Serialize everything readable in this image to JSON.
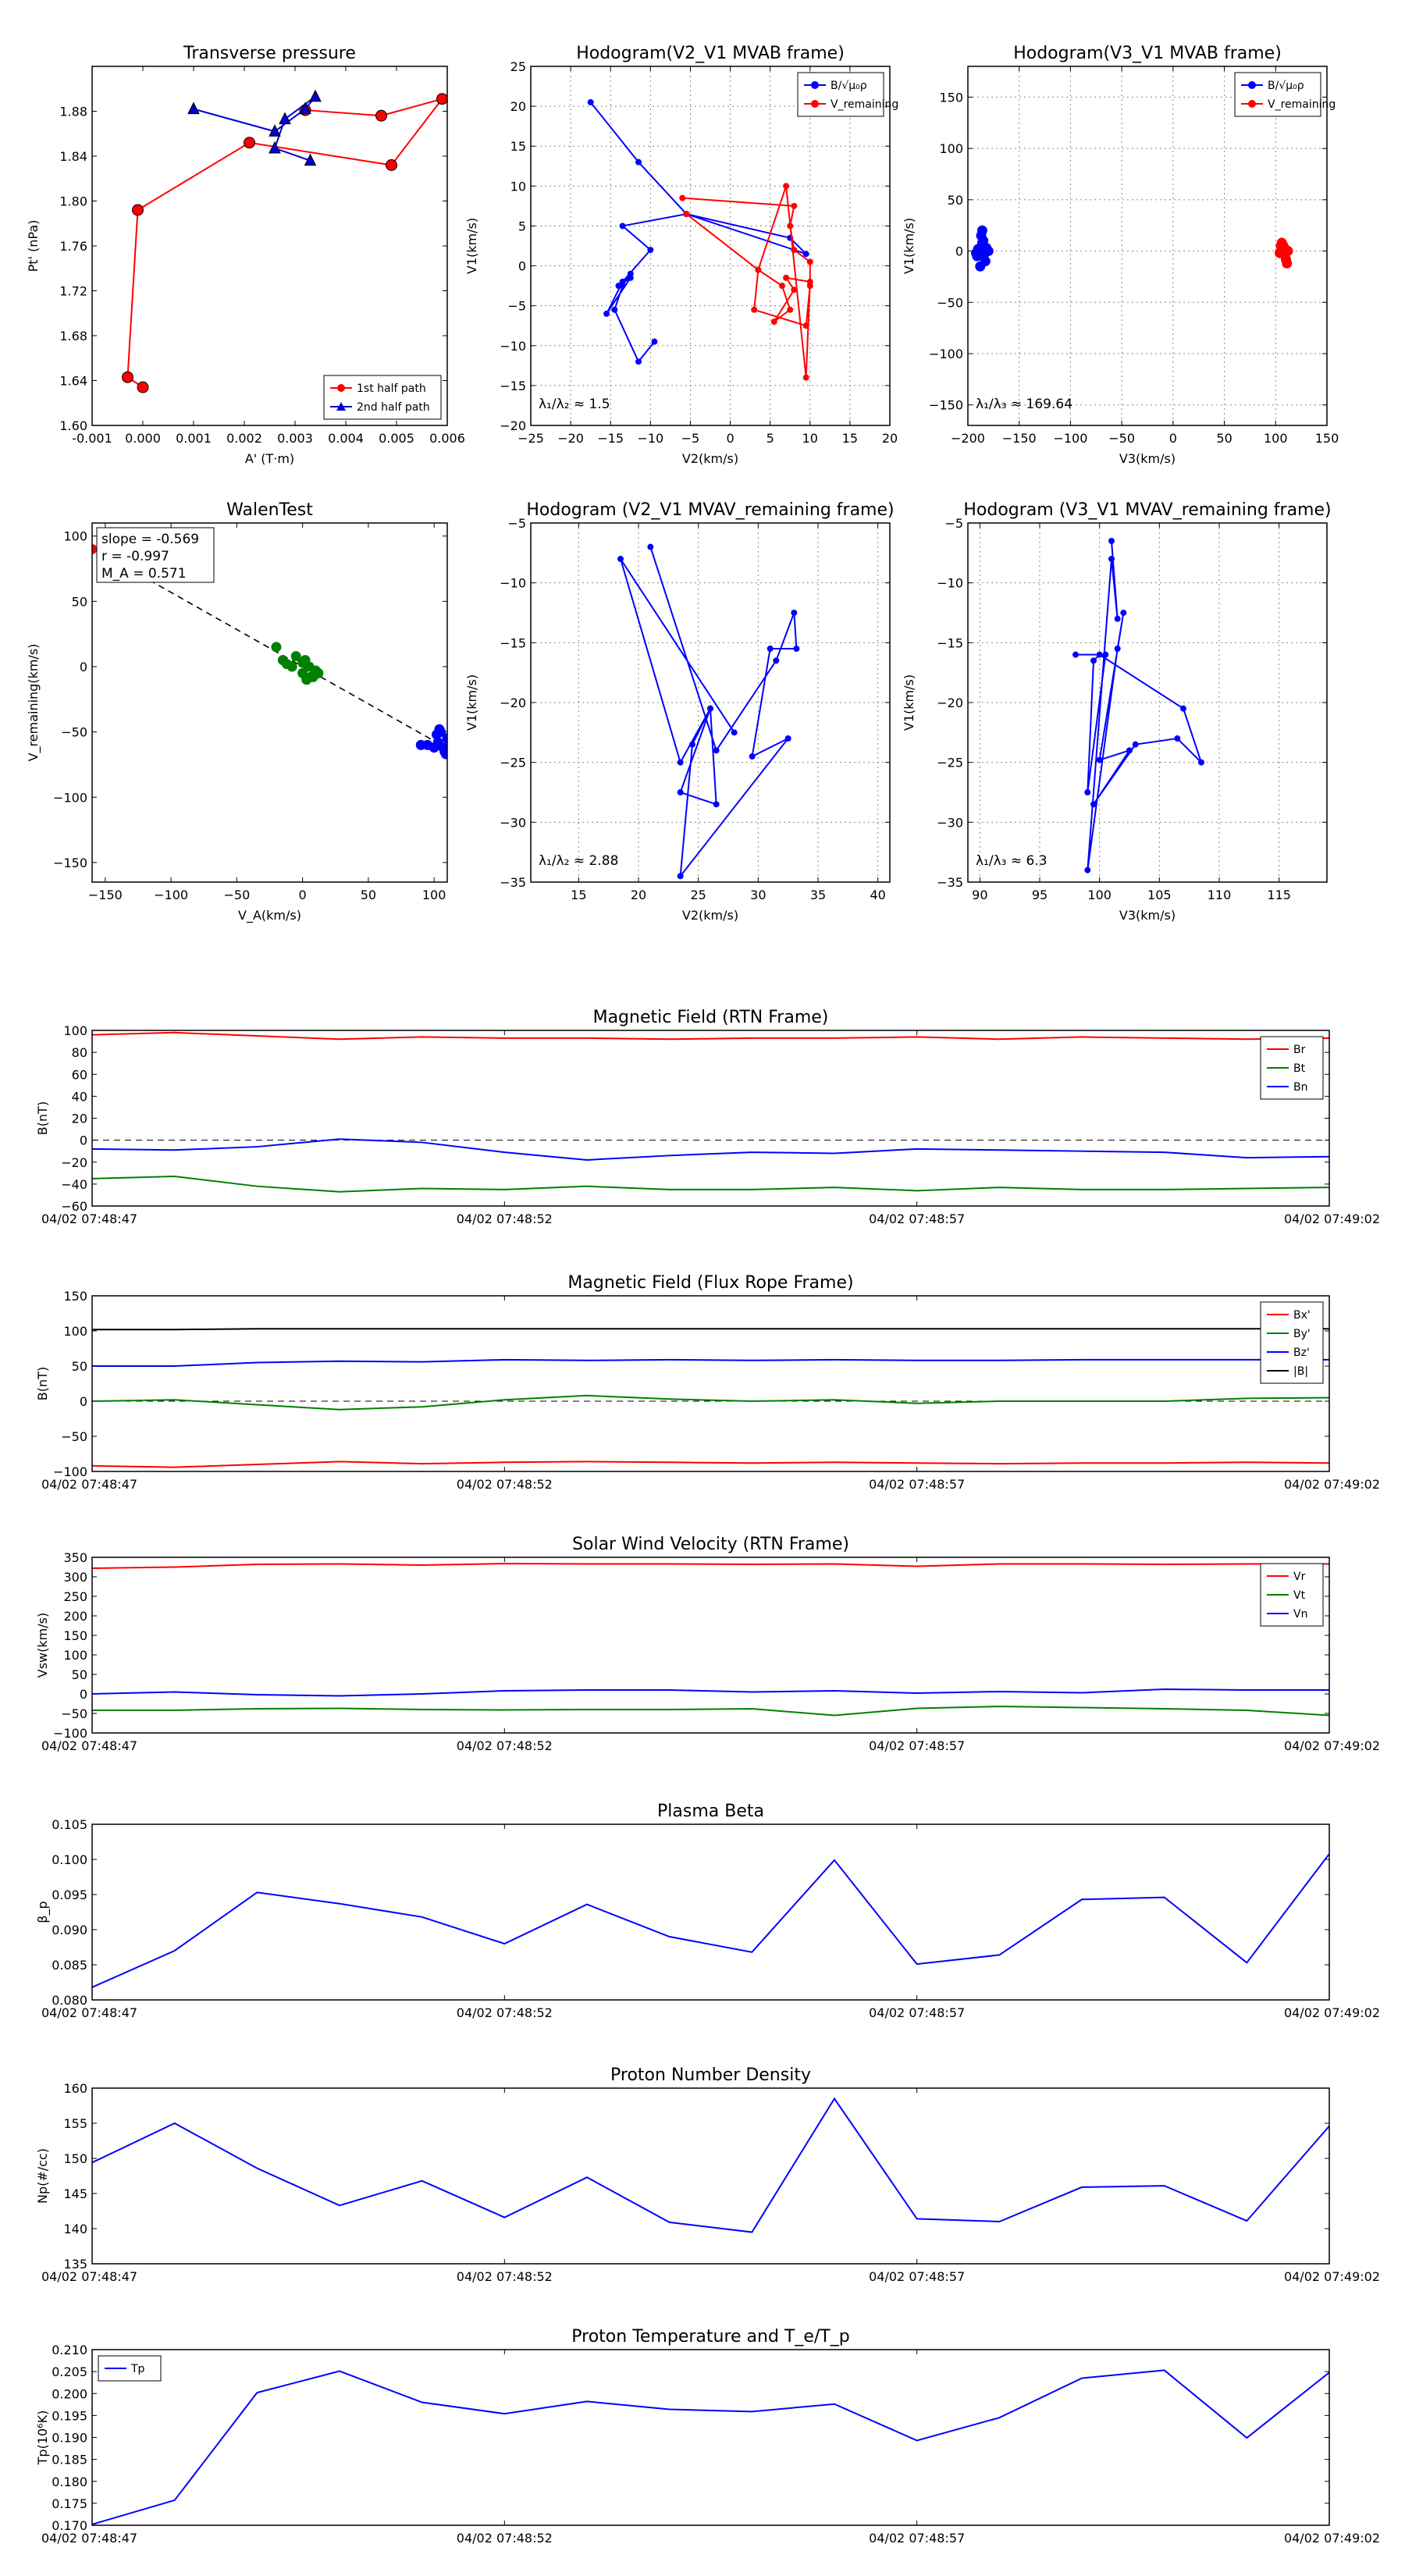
{
  "chart_data": [
    {
      "id": "transverse_pressure",
      "type": "line",
      "title": "Transverse pressure",
      "xlabel": "A' (T·m)",
      "ylabel": "Pt' (nPa)",
      "xlim": [
        -0.001,
        0.006
      ],
      "ylim": [
        1.6,
        1.92
      ],
      "xticks": [
        "-0.001",
        "0.000",
        "0.001",
        "0.002",
        "0.003",
        "0.004",
        "0.005",
        "0.006"
      ],
      "yticks": [
        "1.60",
        "1.64",
        "1.68",
        "1.72",
        "1.76",
        "1.80",
        "1.84",
        "1.88"
      ],
      "legend": "bottom-right",
      "series": [
        {
          "name": "1st half path",
          "color": "#ff0000",
          "marker": "circle",
          "x": [
            0.0,
            -0.0003,
            -0.0001,
            0.0021,
            0.0049,
            0.0059,
            0.0047,
            0.0032
          ],
          "y": [
            1.634,
            1.643,
            1.792,
            1.852,
            1.832,
            1.891,
            1.876,
            1.881
          ]
        },
        {
          "name": "2nd half path",
          "color": "#0000cc",
          "marker": "triangle",
          "x": [
            0.0033,
            0.0026,
            0.0028,
            0.0034,
            0.0032,
            0.0026,
            0.001
          ],
          "y": [
            1.836,
            1.847,
            1.873,
            1.893,
            1.882,
            1.862,
            1.882
          ]
        }
      ]
    },
    {
      "id": "hodo_v2v1_mvab",
      "type": "line",
      "title": "Hodogram(V2_V1 MVAB frame)",
      "xlabel": "V2(km/s)",
      "ylabel": "V1(km/s)",
      "xlim": [
        -25,
        20
      ],
      "ylim": [
        -20,
        25
      ],
      "xticks": [
        "−25",
        "−20",
        "−15",
        "−10",
        "−5",
        "0",
        "5",
        "10",
        "15",
        "20"
      ],
      "yticks": [
        "−20",
        "−15",
        "−10",
        "−5",
        "0",
        "5",
        "10",
        "15",
        "20",
        "25"
      ],
      "annotation": "λ₁/λ₂ ≈ 1.5",
      "legend": "top-right",
      "series": [
        {
          "name": "B/√μ₀ρ",
          "color": "#0000ff",
          "x": [
            -17.5,
            -11.5,
            -5.5,
            9.5,
            7.5,
            -5.5,
            -13.5,
            -10,
            -13.5,
            -15.5,
            -12.5,
            -14,
            -12.5,
            -13.5,
            -14.5,
            -11.5,
            -9.5
          ],
          "y": [
            20.5,
            13,
            6.5,
            1.5,
            3.5,
            6.5,
            5,
            2,
            -2,
            -6,
            -1.5,
            -2.5,
            -1,
            -2.5,
            -5.5,
            -12,
            -9.5
          ]
        },
        {
          "name": "V_remaining",
          "color": "#ff0000",
          "x": [
            -6,
            8,
            7.5,
            8,
            10,
            10,
            9.5,
            3,
            3.5,
            6.5,
            7.5,
            5.5,
            8,
            7,
            10,
            9.5,
            7,
            3.5,
            -5.5
          ],
          "y": [
            8.5,
            7.5,
            5,
            2,
            0.5,
            -2.5,
            -7.5,
            -5.5,
            -0.5,
            -2.5,
            -5.5,
            -7,
            -3,
            -1.5,
            -2,
            -14,
            10,
            -0.5,
            6.5
          ]
        }
      ]
    },
    {
      "id": "hodo_v3v1_mvab",
      "type": "scatter",
      "title": "Hodogram(V3_V1 MVAB frame)",
      "xlabel": "V3(km/s)",
      "ylabel": "V1(km/s)",
      "xlim": [
        -200,
        150
      ],
      "ylim": [
        -170,
        180
      ],
      "xticks": [
        "−200",
        "−150",
        "−100",
        "−50",
        "0",
        "50",
        "100",
        "150"
      ],
      "yticks": [
        "−150",
        "−100",
        "−50",
        "0",
        "50",
        "100",
        "150"
      ],
      "annotation": "λ₁/λ₃ ≈ 169.64",
      "legend": "top-right",
      "series": [
        {
          "name": "B/√μ₀ρ",
          "color": "#0000ff",
          "x": [
            -190,
            -186,
            -191,
            -187,
            -184,
            -189,
            -185,
            -183,
            -192,
            -186,
            -180,
            -188,
            -185,
            -182
          ],
          "y": [
            2,
            8,
            -5,
            15,
            -3,
            0,
            5,
            -10,
            -2,
            20,
            0,
            -15,
            10,
            3
          ]
        },
        {
          "name": "V_remaining",
          "color": "#ff0000",
          "x": [
            105,
            108,
            110,
            106,
            112,
            109,
            107,
            104,
            111,
            108
          ],
          "y": [
            5,
            2,
            -8,
            8,
            0,
            -3,
            6,
            -2,
            -12,
            4
          ]
        }
      ]
    },
    {
      "id": "walen_test",
      "type": "scatter",
      "title": "WalenTest",
      "xlabel": "V_A(km/s)",
      "ylabel": "V_remaining(km/s)",
      "xlim": [
        -160,
        110
      ],
      "ylim": [
        -165,
        110
      ],
      "xticks": [
        "−150",
        "−100",
        "−50",
        "0",
        "50",
        "100"
      ],
      "yticks": [
        "−150",
        "−100",
        "−50",
        "0",
        "50",
        "100"
      ],
      "stats": [
        "slope = -0.569",
        "r = -0.997",
        "M_A = 0.571"
      ],
      "series": [
        {
          "name": "red",
          "color": "#ff0000",
          "x": [
            -160
          ],
          "y": [
            90
          ]
        },
        {
          "name": "green",
          "color": "#008000",
          "x": [
            -20,
            -12,
            -5,
            0,
            2,
            5,
            8,
            10,
            -15,
            3,
            12,
            6,
            -8,
            0
          ],
          "y": [
            15,
            2,
            8,
            -5,
            5,
            0,
            -8,
            -3,
            5,
            -10,
            -5,
            -8,
            0,
            3
          ]
        },
        {
          "name": "blue",
          "color": "#0000ff",
          "x": [
            90,
            100,
            103,
            105,
            108,
            110,
            102,
            95,
            107,
            104,
            109
          ],
          "y": [
            -60,
            -62,
            -58,
            -50,
            -65,
            -55,
            -52,
            -60,
            -62,
            -48,
            -67
          ]
        }
      ],
      "fit_line": {
        "x": [
          -160,
          110
        ],
        "y": [
          91.0,
          -62.6
        ]
      }
    },
    {
      "id": "hodo_v2v1_mvav",
      "type": "line",
      "title": "Hodogram (V2_V1 MVAV_remaining frame)",
      "xlabel": "V2(km/s)",
      "ylabel": "V1(km/s)",
      "xlim": [
        11,
        41
      ],
      "ylim": [
        -35,
        -5
      ],
      "xticks": [
        "15",
        "20",
        "25",
        "30",
        "35",
        "40"
      ],
      "yticks": [
        "−35",
        "−30",
        "−25",
        "−20",
        "−15",
        "−10",
        "−5"
      ],
      "annotation": "λ₁/λ₂ ≈ 2.88",
      "series": [
        {
          "name": "hodogram",
          "color": "#0000ff",
          "x": [
            21,
            26.5,
            31.5,
            33,
            33.2,
            31,
            29.5,
            32.5,
            23.5,
            24.5,
            26,
            23.5,
            26.5,
            26,
            23.5,
            18.5,
            28
          ],
          "y": [
            -7,
            -24,
            -16.5,
            -12.5,
            -15.5,
            -15.5,
            -24.5,
            -23,
            -34.5,
            -23.5,
            -20.5,
            -27.5,
            -28.5,
            -20.5,
            -25,
            -8,
            -22.5
          ]
        }
      ]
    },
    {
      "id": "hodo_v3v1_mvav",
      "type": "line",
      "title": "Hodogram (V3_V1 MVAV_remaining frame)",
      "xlabel": "V3(km/s)",
      "ylabel": "V1(km/s)",
      "xlim": [
        89,
        119
      ],
      "ylim": [
        -35,
        -5
      ],
      "xticks": [
        "90",
        "95",
        "100",
        "105",
        "110",
        "115"
      ],
      "yticks": [
        "−35",
        "−30",
        "−25",
        "−20",
        "−15",
        "−10",
        "−5"
      ],
      "annotation": "λ₁/λ₃ ≈ 6.3",
      "series": [
        {
          "name": "hodogram",
          "color": "#0000ff",
          "x": [
            101,
            101.5,
            101,
            99,
            101.5,
            102,
            100,
            102.5,
            99.5,
            103,
            106.5,
            108.5,
            107,
            100,
            99.5,
            99,
            100.5,
            98
          ],
          "y": [
            -6.5,
            -13,
            -8,
            -34,
            -15.5,
            -12.5,
            -24.8,
            -24,
            -28.5,
            -23.5,
            -23,
            -25,
            -20.5,
            -16,
            -16.5,
            -27.5,
            -16,
            -16
          ]
        }
      ]
    },
    {
      "id": "mag_rtn",
      "type": "line",
      "title": "Magnetic Field (RTN Frame)",
      "ylabel": "B(nT)",
      "ylim": [
        -60,
        100
      ],
      "yticks": [
        "−60",
        "−40",
        "−20",
        "0",
        "20",
        "40",
        "60",
        "80",
        "100"
      ],
      "xticks": [
        "04/02 07:48:47",
        "04/02 07:48:52",
        "04/02 07:48:57",
        "04/02 07:49:02"
      ],
      "zero_line": true,
      "legend": "top-right",
      "series": [
        {
          "name": "Br",
          "color": "#ff0000",
          "values": [
            96,
            98,
            95,
            92,
            94,
            93,
            93,
            92,
            93,
            93,
            94,
            92,
            94,
            93,
            92,
            93
          ]
        },
        {
          "name": "Bt",
          "color": "#008000",
          "values": [
            -35,
            -33,
            -42,
            -47,
            -44,
            -45,
            -42,
            -45,
            -45,
            -43,
            -46,
            -43,
            -45,
            -45,
            -44,
            -43
          ]
        },
        {
          "name": "Bn",
          "color": "#0000ff",
          "values": [
            -8,
            -9,
            -6,
            1,
            -2,
            -11,
            -18,
            -14,
            -11,
            -12,
            -8,
            -9,
            -10,
            -11,
            -16,
            -15
          ]
        }
      ]
    },
    {
      "id": "mag_flux_rope",
      "type": "line",
      "title": "Magnetic Field (Flux Rope Frame)",
      "ylabel": "B(nT)",
      "ylim": [
        -100,
        150
      ],
      "yticks": [
        "−100",
        "−50",
        "0",
        "50",
        "100",
        "150"
      ],
      "xticks": [
        "04/02 07:48:47",
        "04/02 07:48:52",
        "04/02 07:48:57",
        "04/02 07:49:02"
      ],
      "zero_line": true,
      "legend": "top-right",
      "series": [
        {
          "name": "Bx'",
          "color": "#ff0000",
          "values": [
            -92,
            -94,
            -90,
            -86,
            -89,
            -87,
            -86,
            -87,
            -88,
            -87,
            -88,
            -89,
            -88,
            -88,
            -87,
            -88
          ]
        },
        {
          "name": "By'",
          "color": "#008000",
          "values": [
            0,
            2,
            -5,
            -12,
            -8,
            2,
            8,
            3,
            0,
            2,
            -3,
            0,
            0,
            0,
            4,
            5
          ]
        },
        {
          "name": "Bz'",
          "color": "#0000ff",
          "values": [
            50,
            50,
            55,
            57,
            56,
            59,
            58,
            59,
            58,
            59,
            58,
            58,
            59,
            59,
            59,
            59
          ]
        },
        {
          "name": "|B|",
          "color": "#000000",
          "values": [
            102,
            102,
            103,
            103,
            103,
            103,
            103,
            103,
            103,
            103,
            103,
            103,
            103,
            103,
            103,
            103
          ]
        }
      ]
    },
    {
      "id": "sw_velocity",
      "type": "line",
      "title": "Solar Wind Velocity (RTN Frame)",
      "ylabel": "Vsw(km/s)",
      "ylim": [
        -100,
        350
      ],
      "yticks": [
        "−100",
        "−50",
        "0",
        "50",
        "100",
        "150",
        "200",
        "250",
        "300",
        "350"
      ],
      "xticks": [
        "04/02 07:48:47",
        "04/02 07:48:52",
        "04/02 07:48:57",
        "04/02 07:49:02"
      ],
      "legend": "top-right",
      "series": [
        {
          "name": "Vr",
          "color": "#ff0000",
          "values": [
            322,
            325,
            332,
            333,
            330,
            334,
            333,
            333,
            332,
            333,
            327,
            333,
            333,
            332,
            333,
            333
          ]
        },
        {
          "name": "Vt",
          "color": "#008000",
          "values": [
            -42,
            -42,
            -38,
            -37,
            -40,
            -41,
            -40,
            -40,
            -38,
            -55,
            -37,
            -32,
            -35,
            -38,
            -42,
            -55
          ]
        },
        {
          "name": "Vn",
          "color": "#0000ff",
          "values": [
            0,
            5,
            -2,
            -5,
            0,
            8,
            10,
            10,
            5,
            8,
            2,
            6,
            3,
            12,
            10,
            10
          ]
        }
      ]
    },
    {
      "id": "plasma_beta",
      "type": "line",
      "title": "Plasma Beta",
      "ylabel": "β_p",
      "ylim": [
        0.08,
        0.105
      ],
      "yticks": [
        "0.080",
        "0.085",
        "0.090",
        "0.095",
        "0.100",
        "0.105"
      ],
      "xticks": [
        "04/02 07:48:47",
        "04/02 07:48:52",
        "04/02 07:48:57",
        "04/02 07:49:02"
      ],
      "series": [
        {
          "name": "beta",
          "color": "#0000ff",
          "values": [
            0.0818,
            0.087,
            0.0953,
            0.0937,
            0.0918,
            0.088,
            0.0936,
            0.089,
            0.0868,
            0.0999,
            0.0851,
            0.0864,
            0.0943,
            0.0946,
            0.0853,
            0.1008
          ]
        }
      ]
    },
    {
      "id": "proton_density",
      "type": "line",
      "title": "Proton Number Density",
      "ylabel": "Np(#/cc)",
      "ylim": [
        135,
        160
      ],
      "yticks": [
        "135",
        "140",
        "145",
        "150",
        "155",
        "160"
      ],
      "xticks": [
        "04/02 07:48:47",
        "04/02 07:48:52",
        "04/02 07:48:57",
        "04/02 07:49:02"
      ],
      "series": [
        {
          "name": "Np",
          "color": "#0000ff",
          "values": [
            149.4,
            155.0,
            148.6,
            143.3,
            146.8,
            141.6,
            147.3,
            140.9,
            139.5,
            158.5,
            141.4,
            141.0,
            145.9,
            146.1,
            141.1,
            154.6
          ]
        }
      ]
    },
    {
      "id": "proton_temperature",
      "type": "line",
      "title": "Proton Temperature and T_e/T_p",
      "ylabel": "Tp(10⁶K)",
      "ylim": [
        0.17,
        0.21
      ],
      "yticks": [
        "0.170",
        "0.175",
        "0.180",
        "0.185",
        "0.190",
        "0.195",
        "0.200",
        "0.205",
        "0.210"
      ],
      "xticks": [
        "04/02 07:48:47",
        "04/02 07:48:52",
        "04/02 07:48:57",
        "04/02 07:49:02"
      ],
      "legend": "top-left",
      "series": [
        {
          "name": "Tp",
          "color": "#0000ff",
          "values": [
            0.1702,
            0.1757,
            0.2002,
            0.2051,
            0.198,
            0.1954,
            0.1982,
            0.1964,
            0.1959,
            0.1976,
            0.1893,
            0.1945,
            0.2035,
            0.2053,
            0.1899,
            0.2048
          ]
        }
      ]
    }
  ]
}
